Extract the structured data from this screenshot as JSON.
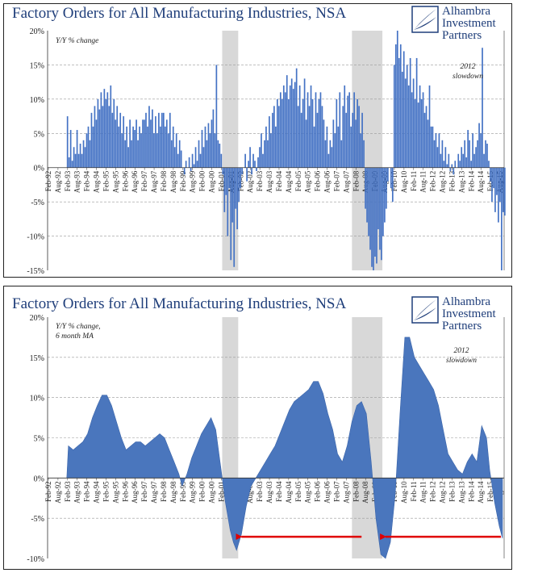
{
  "logo": {
    "line1": "Alhambra",
    "line2": "Investment",
    "line3": "Partners"
  },
  "chart_data": [
    {
      "type": "bar",
      "title": "Factory Orders for All Manufacturing Industries, NSA",
      "subtitle": "Y/Y % change",
      "annotation": [
        "2012",
        "slowdown"
      ],
      "ylim": [
        -15,
        20
      ],
      "yticks": [
        "20%",
        "15%",
        "10%",
        "5%",
        "0%",
        "-5%",
        "-10%",
        "-15%"
      ],
      "xticks": [
        "Feb-92",
        "Aug-92",
        "Feb-93",
        "Aug-93",
        "Feb-94",
        "Aug-94",
        "Feb-95",
        "Aug-95",
        "Feb-96",
        "Aug-96",
        "Feb-97",
        "Aug-97",
        "Feb-98",
        "Aug-98",
        "Feb-99",
        "Aug-99",
        "Feb-00",
        "Aug-00",
        "Feb-01",
        "Aug-01",
        "Feb-02",
        "Aug-02",
        "Feb-03",
        "Aug-03",
        "Feb-04",
        "Aug-04",
        "Feb-05",
        "Aug-05",
        "Feb-06",
        "Aug-06",
        "Feb-07",
        "Aug-07",
        "Feb-08",
        "Aug-08",
        "Feb-09",
        "Aug-09",
        "Feb-10",
        "Aug-10",
        "Feb-11",
        "Aug-11",
        "Feb-12",
        "Aug-12",
        "Feb-13",
        "Aug-13",
        "Feb-14",
        "Aug-14",
        "Feb-15",
        "Aug-15"
      ],
      "recessions": [
        [
          "2001-03",
          "2001-11"
        ],
        [
          "2007-12",
          "2009-06"
        ]
      ],
      "shaded_ranges": [
        [
          "2001-03",
          "2001-12"
        ],
        [
          "2007-12",
          "2009-06"
        ]
      ],
      "series": [
        {
          "start": "1993-02",
          "values": [
            7.5,
            1.5,
            5.5,
            1,
            3,
            2,
            5.5,
            2,
            3.5,
            2,
            4,
            3,
            5,
            6,
            4,
            8,
            6,
            9,
            7,
            10,
            8.5,
            11,
            9,
            11.5,
            10,
            11,
            9,
            12,
            8,
            10,
            7,
            9,
            6,
            8,
            5,
            7.5,
            4,
            6,
            3,
            7,
            4,
            6,
            5.5,
            7,
            4,
            6,
            5,
            7,
            7,
            8,
            6,
            9,
            7,
            8.5,
            5,
            7.5,
            5,
            8,
            6,
            8,
            8,
            6,
            7,
            5,
            8,
            4,
            6,
            3,
            5,
            2,
            4,
            2.5,
            0,
            -1,
            1,
            0,
            1.5,
            -0.5,
            2,
            0.5,
            3,
            1,
            4,
            2,
            5.5,
            3,
            6,
            4,
            6.5,
            5,
            7,
            8.5,
            5,
            15,
            4,
            3.5,
            2,
            -1,
            -6.5,
            -4,
            -10,
            -3,
            -13.5,
            -8,
            -14.5,
            -6,
            -9,
            -5,
            -3,
            -1,
            0,
            2,
            -2,
            1,
            3,
            -1,
            2,
            1,
            -0.5,
            1.5,
            3,
            5,
            2,
            4,
            6,
            4,
            7.5,
            5,
            8,
            9,
            6,
            10,
            9,
            11,
            10,
            12,
            11,
            13.5,
            10,
            12,
            13,
            11.5,
            12.5,
            14.5,
            9,
            12,
            8,
            10,
            13,
            7,
            11,
            9,
            12,
            10,
            6,
            11,
            8,
            10,
            11,
            9,
            7,
            4,
            6,
            2,
            4,
            3,
            7,
            5,
            10,
            6,
            11,
            4,
            9,
            12,
            8,
            10.5,
            11,
            6,
            8,
            11,
            7,
            10,
            9,
            5,
            8,
            4,
            -6,
            -8,
            -10,
            -12,
            -14.5,
            -15,
            -13,
            -14,
            -9,
            -12,
            -13.5,
            -10,
            -8,
            -6,
            -2,
            0,
            -3,
            -5,
            15,
            18,
            20,
            16,
            18,
            14,
            17,
            13,
            15,
            12,
            16,
            11,
            13,
            10,
            16,
            9.5,
            12,
            10,
            11,
            8,
            9,
            7,
            12,
            6,
            6,
            4,
            5,
            3,
            5,
            2,
            4,
            1,
            3,
            0.5,
            2,
            -0.5,
            0.5,
            -1,
            1,
            0,
            2,
            1,
            3,
            2,
            4,
            1.5,
            5.5,
            4,
            1,
            5,
            2,
            3,
            4,
            6.5,
            5,
            17.5,
            2,
            4,
            3.5,
            1,
            -2,
            -5,
            -3,
            -6.5,
            -4,
            -8,
            -5,
            -15,
            -6.5,
            -7
          ]
        }
      ]
    },
    {
      "type": "area",
      "title": "Factory Orders for All Manufacturing Industries, NSA",
      "subtitle": [
        "Y/Y % change,",
        "6 month MA"
      ],
      "annotation": [
        "2012",
        "slowdown"
      ],
      "ylim": [
        -10,
        20
      ],
      "yticks": [
        "20%",
        "15%",
        "10%",
        "5%",
        "0%",
        "-5%",
        "-10%"
      ],
      "xticks": [
        "Feb-92",
        "Aug-92",
        "Feb-93",
        "Aug-93",
        "Feb-94",
        "Aug-94",
        "Feb-95",
        "Aug-95",
        "Feb-96",
        "Aug-96",
        "Feb-97",
        "Aug-97",
        "Feb-98",
        "Aug-98",
        "Feb-99",
        "Aug-99",
        "Feb-00",
        "Aug-00",
        "Feb-01",
        "Aug-01",
        "Feb-02",
        "Aug-02",
        "Feb-03",
        "Aug-03",
        "Feb-04",
        "Aug-04",
        "Feb-05",
        "Aug-05",
        "Feb-06",
        "Aug-06",
        "Feb-07",
        "Aug-07",
        "Feb-08",
        "Aug-08",
        "Feb-09",
        "Aug-09",
        "Feb-10",
        "Aug-10",
        "Feb-11",
        "Aug-11",
        "Feb-12",
        "Aug-12",
        "Feb-13",
        "Aug-13",
        "Feb-14",
        "Aug-14",
        "Feb-15",
        "Aug-15"
      ],
      "recessions": [
        [
          "2001-03",
          "2001-11"
        ],
        [
          "2007-12",
          "2009-06"
        ]
      ],
      "shaded_ranges": [
        [
          "2001-03",
          "2001-12"
        ],
        [
          "2007-12",
          "2009-06"
        ]
      ],
      "arrows": [
        [
          "2008-06",
          "2001-12"
        ],
        [
          "2015-09",
          "2009-06"
        ]
      ],
      "series": [
        {
          "start": "1993-02",
          "points": [
            [
              "1993-02",
              0
            ],
            [
              "1993-03",
              4
            ],
            [
              "1993-06",
              3.5
            ],
            [
              "1993-09",
              4
            ],
            [
              "1993-12",
              4.5
            ],
            [
              "1994-03",
              5.5
            ],
            [
              "1994-06",
              7.5
            ],
            [
              "1994-09",
              9
            ],
            [
              "1994-12",
              10.3
            ],
            [
              "1995-03",
              10.3
            ],
            [
              "1995-06",
              9
            ],
            [
              "1995-09",
              7
            ],
            [
              "1995-12",
              5
            ],
            [
              "1996-03",
              3.5
            ],
            [
              "1996-06",
              4
            ],
            [
              "1996-09",
              4.5
            ],
            [
              "1996-12",
              4.5
            ],
            [
              "1997-03",
              4
            ],
            [
              "1997-06",
              4.5
            ],
            [
              "1997-09",
              5
            ],
            [
              "1997-12",
              5.5
            ],
            [
              "1998-03",
              5
            ],
            [
              "1998-06",
              3.5
            ],
            [
              "1998-09",
              2
            ],
            [
              "1998-12",
              0.5
            ],
            [
              "1999-02",
              -1
            ],
            [
              "1999-05",
              0.5
            ],
            [
              "1999-08",
              2.5
            ],
            [
              "1999-11",
              4
            ],
            [
              "2000-02",
              5.5
            ],
            [
              "2000-05",
              6.5
            ],
            [
              "2000-08",
              7.5
            ],
            [
              "2000-11",
              6
            ],
            [
              "2001-02",
              1.5
            ],
            [
              "2001-05",
              -3
            ],
            [
              "2001-08",
              -6.5
            ],
            [
              "2001-10",
              -8
            ],
            [
              "2001-12",
              -9
            ],
            [
              "2002-03",
              -7
            ],
            [
              "2002-06",
              -3.5
            ],
            [
              "2002-09",
              -1
            ],
            [
              "2002-12",
              0
            ],
            [
              "2003-03",
              1
            ],
            [
              "2003-06",
              2
            ],
            [
              "2003-09",
              3
            ],
            [
              "2003-12",
              4
            ],
            [
              "2004-03",
              5.5
            ],
            [
              "2004-06",
              7
            ],
            [
              "2004-09",
              8.5
            ],
            [
              "2004-12",
              9.5
            ],
            [
              "2005-03",
              10
            ],
            [
              "2005-06",
              10.5
            ],
            [
              "2005-09",
              11
            ],
            [
              "2005-12",
              12
            ],
            [
              "2006-03",
              12
            ],
            [
              "2006-06",
              10.5
            ],
            [
              "2006-09",
              8
            ],
            [
              "2006-12",
              6
            ],
            [
              "2007-03",
              3
            ],
            [
              "2007-06",
              2
            ],
            [
              "2007-09",
              4
            ],
            [
              "2007-12",
              7
            ],
            [
              "2008-03",
              9
            ],
            [
              "2008-06",
              9.5
            ],
            [
              "2008-09",
              8
            ],
            [
              "2008-12",
              2
            ],
            [
              "2009-03",
              -5
            ],
            [
              "2009-06",
              -9.5
            ],
            [
              "2009-09",
              -10
            ],
            [
              "2009-12",
              -8
            ],
            [
              "2010-03",
              -2
            ],
            [
              "2010-06",
              8
            ],
            [
              "2010-09",
              17.5
            ],
            [
              "2010-12",
              17.5
            ],
            [
              "2011-03",
              15
            ],
            [
              "2011-06",
              14
            ],
            [
              "2011-09",
              13
            ],
            [
              "2011-12",
              12
            ],
            [
              "2012-03",
              11
            ],
            [
              "2012-06",
              9
            ],
            [
              "2012-09",
              6
            ],
            [
              "2012-12",
              3
            ],
            [
              "2013-03",
              2
            ],
            [
              "2013-06",
              1
            ],
            [
              "2013-09",
              0.5
            ],
            [
              "2013-12",
              2
            ],
            [
              "2014-03",
              3
            ],
            [
              "2014-06",
              2
            ],
            [
              "2014-09",
              6.5
            ],
            [
              "2014-12",
              5
            ],
            [
              "2015-02",
              1
            ],
            [
              "2015-05",
              -3
            ],
            [
              "2015-08",
              -6
            ],
            [
              "2015-10",
              -7.5
            ]
          ]
        }
      ]
    }
  ]
}
